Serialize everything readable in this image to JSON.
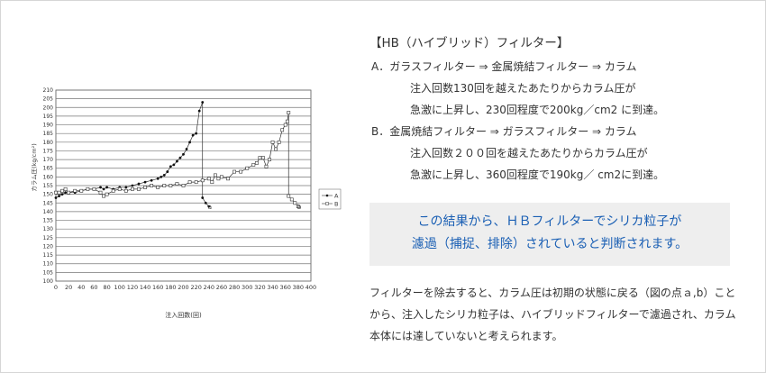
{
  "chart_data": {
    "type": "line",
    "title": "",
    "xlabel": "注入回数(回)",
    "ylabel": "カラム圧(kg/cm²)",
    "xlim": [
      0,
      400
    ],
    "ylim": [
      100,
      210
    ],
    "xticks": [
      "0",
      "20",
      "40",
      "60",
      "80",
      "100",
      "120",
      "140",
      "160",
      "180",
      "200",
      "220",
      "240",
      "260",
      "280",
      "300",
      "320",
      "340",
      "360",
      "380",
      "400"
    ],
    "yticks": [
      "100",
      "105",
      "110",
      "115",
      "120",
      "125",
      "130",
      "135",
      "140",
      "145",
      "150",
      "155",
      "160",
      "165",
      "170",
      "175",
      "180",
      "185",
      "190",
      "195",
      "200",
      "205",
      "210"
    ],
    "grid": "horizontal",
    "legend_position": "right",
    "series": [
      {
        "name": "A",
        "marker": "filled-circle",
        "x": [
          0,
          5,
          10,
          15,
          20,
          30,
          40,
          50,
          60,
          70,
          75,
          80,
          90,
          100,
          110,
          120,
          130,
          140,
          150,
          160,
          165,
          170,
          175,
          180,
          185,
          190,
          195,
          200,
          205,
          210,
          215,
          220,
          225,
          230,
          230,
          235,
          240
        ],
        "y": [
          148,
          149,
          150,
          151,
          151,
          151,
          152,
          153,
          153,
          154,
          153,
          154,
          153,
          154,
          154,
          155,
          156,
          157,
          158,
          159,
          160,
          161,
          163,
          166,
          167,
          169,
          171,
          173,
          176,
          180,
          184,
          185,
          198,
          203,
          148,
          145,
          143
        ]
      },
      {
        "name": "B",
        "marker": "open-square",
        "x": [
          0,
          5,
          10,
          15,
          20,
          30,
          40,
          50,
          60,
          70,
          75,
          80,
          90,
          100,
          110,
          120,
          130,
          140,
          150,
          160,
          170,
          180,
          190,
          200,
          210,
          220,
          230,
          240,
          245,
          250,
          255,
          260,
          270,
          280,
          290,
          300,
          310,
          315,
          320,
          325,
          330,
          335,
          340,
          345,
          350,
          355,
          360,
          363,
          365,
          365,
          370,
          375,
          380
        ],
        "y": [
          151,
          151,
          152,
          153,
          151,
          152,
          152,
          153,
          153,
          151,
          149,
          150,
          152,
          153,
          152,
          153,
          153,
          154,
          155,
          154,
          155,
          155,
          156,
          155,
          157,
          157,
          158,
          159,
          157,
          161,
          159,
          160,
          159,
          163,
          163,
          165,
          167,
          168,
          171,
          171,
          166,
          170,
          180,
          176,
          180,
          187,
          190,
          192,
          197,
          149,
          147,
          145,
          143
        ]
      }
    ],
    "annotations": [
      "a",
      "b"
    ]
  },
  "text": {
    "title": "【HB（ハイブリッド）フィルター】",
    "a_head": "A．ガラスフィルター ⇒ 金属焼結フィルター ⇒ カラム",
    "a_line1": "注入回数130回を越えたあたりからカラム圧が",
    "a_line2": "急激に上昇し、230回程度で200kg／cm2 に到達。",
    "b_head": "B．金属焼結フィルター ⇒ ガラスフィルター ⇒ カラム",
    "b_line1": "注入回数２００回を越えたあたりからカラム圧が",
    "b_line2": "急激に上昇し、360回程度で190kg／ cm2に到達。",
    "callout1": "この結果から、ＨＢフィルターでシリカ粒子が",
    "callout2": "濾過（捕捉、排除）されていると判断されます。",
    "para": "フィルターを除去すると、カラム圧は初期の状態に戻る（図の点ａ,b）ことから、注入したシリカ粒子は、ハイブリッドフィルターで濾過され、カラム本体には達していないと考えられます。"
  },
  "colors": {
    "accent": "#1a5fb4",
    "callout_bg": "#eeeeee"
  }
}
